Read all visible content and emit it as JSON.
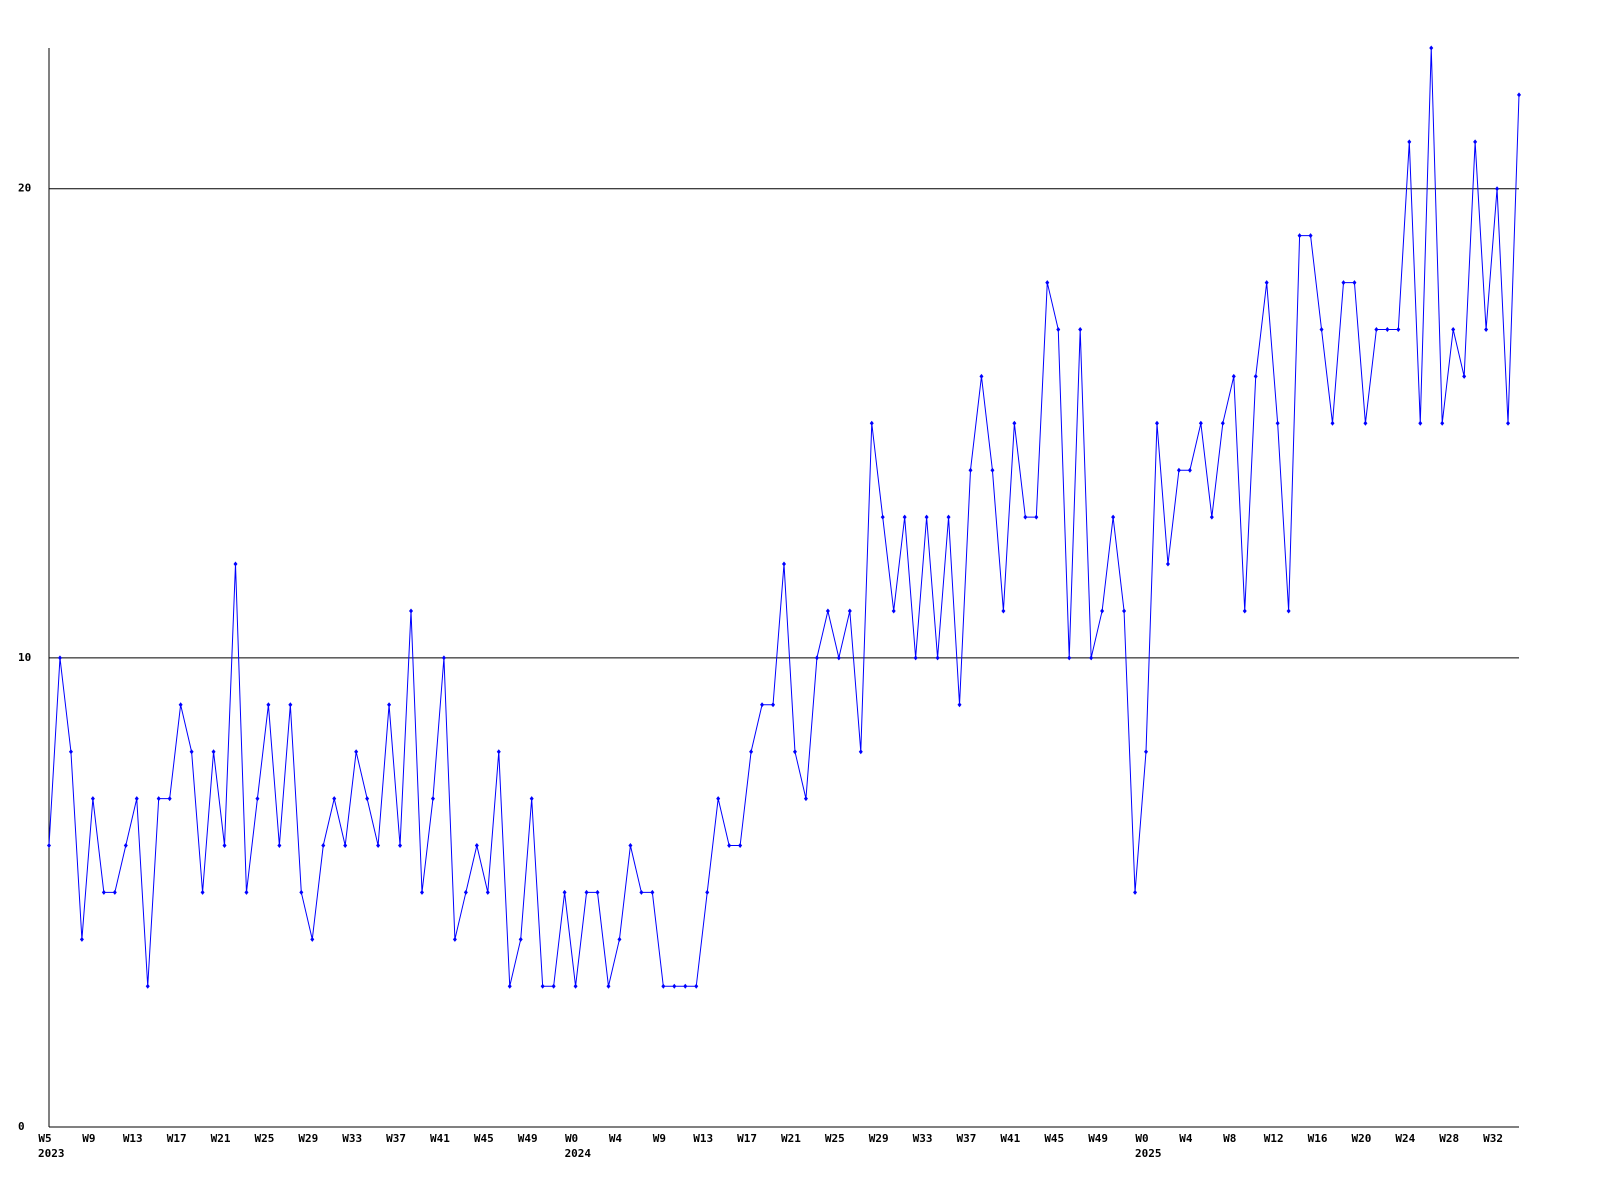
{
  "chart_data": {
    "type": "line",
    "categories": [
      "W5",
      null,
      null,
      null,
      "W9",
      null,
      null,
      null,
      "W13",
      null,
      null,
      null,
      "W17",
      null,
      null,
      null,
      "W21",
      null,
      null,
      null,
      "W25",
      null,
      null,
      null,
      "W29",
      null,
      null,
      null,
      "W33",
      null,
      null,
      null,
      "W37",
      null,
      null,
      null,
      "W41",
      null,
      null,
      null,
      "W45",
      null,
      null,
      null,
      "W49",
      null,
      null,
      null,
      "W0",
      null,
      null,
      null,
      "W4",
      null,
      null,
      null,
      "W9",
      null,
      null,
      null,
      "W13",
      null,
      null,
      null,
      "W17",
      null,
      null,
      null,
      "W21",
      null,
      null,
      null,
      "W25",
      null,
      null,
      null,
      "W29",
      null,
      null,
      null,
      "W33",
      null,
      null,
      null,
      "W37",
      null,
      null,
      null,
      "W41",
      null,
      null,
      null,
      "W45",
      null,
      null,
      null,
      "W49",
      null,
      null,
      null,
      "W0",
      null,
      null,
      null,
      "W4",
      null,
      null,
      null,
      "W8",
      null,
      null,
      null,
      "W12",
      null,
      null,
      null,
      "W16",
      null,
      null,
      null,
      "W20",
      null,
      null,
      null,
      "W24",
      null,
      null,
      null,
      "W28",
      null,
      null,
      null,
      "W32",
      null,
      null
    ],
    "years": [
      "2023",
      null,
      null,
      null,
      null,
      null,
      null,
      null,
      null,
      null,
      null,
      null,
      null,
      null,
      null,
      null,
      null,
      null,
      null,
      null,
      null,
      null,
      null,
      null,
      null,
      null,
      null,
      null,
      null,
      null,
      null,
      null,
      null,
      null,
      null,
      null,
      null,
      null,
      null,
      null,
      null,
      null,
      null,
      null,
      null,
      null,
      null,
      null,
      "2024",
      null,
      null,
      null,
      null,
      null,
      null,
      null,
      null,
      null,
      null,
      null,
      null,
      null,
      null,
      null,
      null,
      null,
      null,
      null,
      null,
      null,
      null,
      null,
      null,
      null,
      null,
      null,
      null,
      null,
      null,
      null,
      null,
      null,
      null,
      null,
      null,
      null,
      null,
      null,
      null,
      null,
      null,
      null,
      null,
      null,
      null,
      null,
      null,
      null,
      null,
      null,
      "2025",
      null,
      null,
      null,
      null,
      null,
      null,
      null,
      null,
      null,
      null,
      null,
      null,
      null,
      null,
      null,
      null,
      null,
      null,
      null,
      null,
      null,
      null,
      null,
      null,
      null,
      null,
      null,
      null,
      null,
      null,
      null,
      null,
      null,
      null
    ],
    "values": [
      6,
      10,
      8,
      4,
      7,
      5,
      5,
      6,
      7,
      3,
      7,
      7,
      9,
      8,
      5,
      8,
      6,
      12,
      5,
      7,
      9,
      6,
      9,
      5,
      4,
      6,
      7,
      6,
      8,
      7,
      6,
      9,
      6,
      11,
      5,
      7,
      10,
      4,
      5,
      6,
      5,
      8,
      3,
      4,
      7,
      3,
      3,
      5,
      3,
      5,
      5,
      3,
      4,
      6,
      5,
      5,
      3,
      3,
      3,
      3,
      5,
      7,
      6,
      6,
      8,
      9,
      9,
      12,
      8,
      7,
      10,
      11,
      10,
      11,
      8,
      15,
      13,
      11,
      13,
      10,
      13,
      10,
      13,
      9,
      14,
      16,
      14,
      11,
      15,
      13,
      13,
      18,
      17,
      10,
      17,
      10,
      11,
      13,
      11,
      5,
      8,
      15,
      12,
      14,
      14,
      15,
      13,
      15,
      16,
      11,
      16,
      18,
      15,
      11,
      19,
      19,
      17,
      15,
      18,
      18,
      15,
      17,
      17,
      17,
      21,
      15,
      23,
      15,
      17,
      16,
      21,
      17,
      20,
      15,
      22
    ],
    "color": "#0000ff",
    "ylim": [
      0,
      23
    ],
    "yticks": [
      0,
      10,
      20
    ],
    "grid": true
  }
}
